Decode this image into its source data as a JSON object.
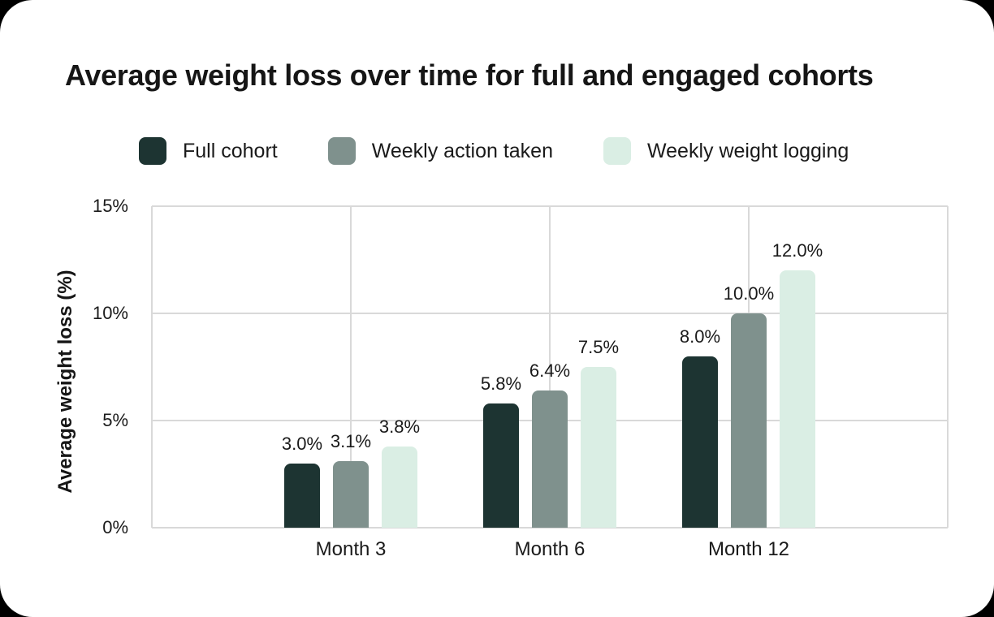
{
  "chart_data": {
    "type": "bar",
    "title": "Average weight loss over time for full and engaged cohorts",
    "categories": [
      "Month 3",
      "Month 6",
      "Month 12"
    ],
    "series": [
      {
        "name": "Full cohort",
        "color": "#1d3432",
        "values": [
          3.0,
          5.8,
          8.0
        ],
        "value_labels": [
          "3.0%",
          "5.8%",
          "8.0%"
        ]
      },
      {
        "name": "Weekly action taken",
        "color": "#7f918d",
        "values": [
          3.1,
          6.4,
          10.0
        ],
        "value_labels": [
          "3.1%",
          "6.4%",
          "10.0%"
        ]
      },
      {
        "name": "Weekly weight logging",
        "color": "#daeee4",
        "values": [
          3.8,
          7.5,
          12.0
        ],
        "value_labels": [
          "3.8%",
          "7.5%",
          "12.0%"
        ]
      }
    ],
    "xlabel": "",
    "ylabel": "Average weight loss (%)",
    "ylim": [
      0,
      15
    ],
    "yticks": [
      0,
      5,
      10,
      15
    ],
    "ytick_labels": [
      "0%",
      "5%",
      "10%",
      "15%"
    ],
    "grid": true,
    "legend_position": "top-left"
  },
  "colors": {
    "background": "#000000",
    "card": "#ffffff",
    "grid": "#d9d9d9",
    "text": "#1a1a1a"
  }
}
